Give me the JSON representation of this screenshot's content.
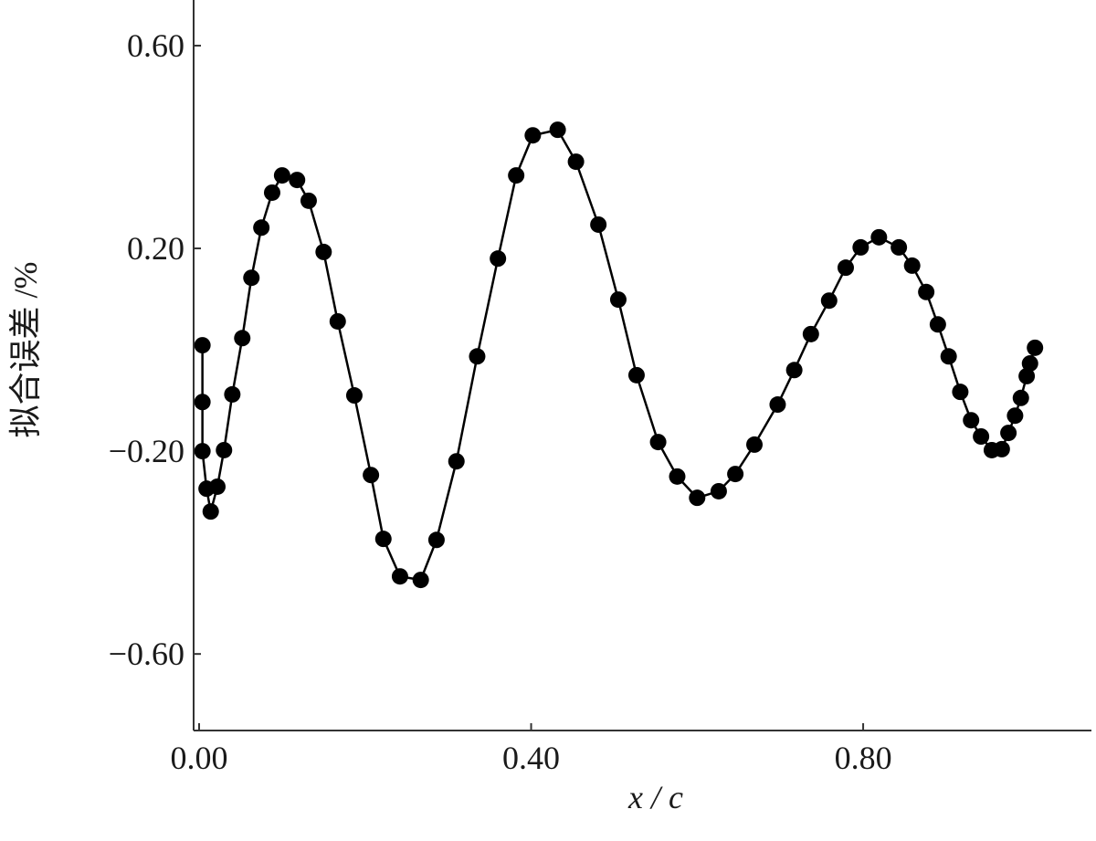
{
  "chart_data": {
    "type": "line",
    "xlabel": "x / c",
    "ylabel": "拟合误差 /%",
    "x": [
      0.004,
      0.004,
      0.004,
      0.009,
      0.014,
      0.022,
      0.03,
      0.04,
      0.052,
      0.063,
      0.075,
      0.088,
      0.1,
      0.118,
      0.132,
      0.15,
      0.167,
      0.187,
      0.207,
      0.222,
      0.242,
      0.267,
      0.286,
      0.31,
      0.335,
      0.36,
      0.382,
      0.402,
      0.432,
      0.454,
      0.481,
      0.505,
      0.527,
      0.553,
      0.576,
      0.6,
      0.626,
      0.646,
      0.669,
      0.697,
      0.717,
      0.737,
      0.759,
      0.779,
      0.797,
      0.819,
      0.843,
      0.859,
      0.876,
      0.89,
      0.903,
      0.917,
      0.93,
      0.942,
      0.955,
      0.967,
      0.975,
      0.983,
      0.99,
      0.997,
      1.001,
      1.007
    ],
    "series": [
      {
        "color": "#000000",
        "values": [
          0.009,
          -0.103,
          -0.2,
          -0.274,
          -0.319,
          -0.27,
          -0.198,
          -0.088,
          0.023,
          0.142,
          0.241,
          0.31,
          0.344,
          0.335,
          0.294,
          0.193,
          0.056,
          -0.09,
          -0.247,
          -0.373,
          -0.447,
          -0.454,
          -0.375,
          -0.22,
          -0.013,
          0.18,
          0.344,
          0.423,
          0.434,
          0.371,
          0.247,
          0.099,
          -0.05,
          -0.182,
          -0.25,
          -0.292,
          -0.279,
          -0.245,
          -0.187,
          -0.108,
          -0.04,
          0.031,
          0.097,
          0.162,
          0.202,
          0.222,
          0.202,
          0.166,
          0.114,
          0.05,
          -0.013,
          -0.083,
          -0.139,
          -0.171,
          -0.198,
          -0.196,
          -0.164,
          -0.13,
          -0.095,
          -0.052,
          -0.027,
          0.004
        ]
      }
    ],
    "xlim": [
      -0.0066,
      1.075
    ],
    "ylim": [
      -0.751,
      0.69
    ],
    "xticks": [
      {
        "value": 0,
        "label": "0.00"
      },
      {
        "value": 0.4,
        "label": "0.40"
      },
      {
        "value": 0.8,
        "label": "0.80"
      }
    ],
    "yticks": [
      {
        "value": 0.6,
        "label": "0.60"
      },
      {
        "value": 0.2,
        "label": "0.20"
      },
      {
        "value": -0.2,
        "label": "−0.20"
      },
      {
        "value": -0.6,
        "label": "−0.60"
      }
    ],
    "markers": true
  }
}
